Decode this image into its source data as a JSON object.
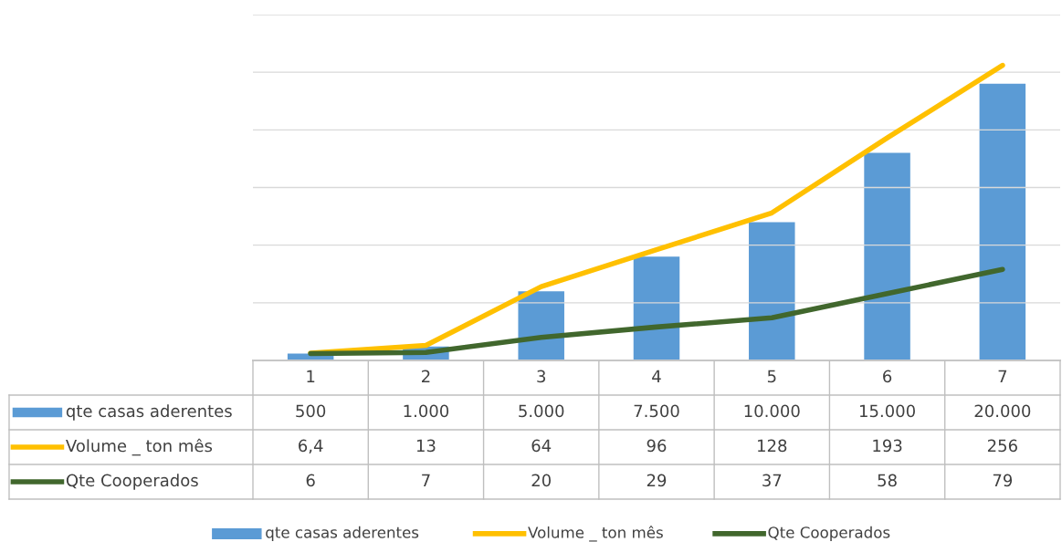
{
  "chart_data": {
    "type": "bar",
    "categories": [
      "1",
      "2",
      "3",
      "4",
      "5",
      "6",
      "7"
    ],
    "series": [
      {
        "name": "qte casas aderentes",
        "color": "#5b9bd5",
        "values": [
          500,
          1000,
          5000,
          7500,
          10000,
          15000,
          20000
        ],
        "value_labels": [
          "500",
          "1.000",
          "5.000",
          "7.500",
          "10.000",
          "15.000",
          "20.000"
        ]
      },
      {
        "name": "Volume _ ton mês",
        "type": "line",
        "axis": "y2",
        "color": "#ffc000",
        "values": [
          6.4,
          13,
          64,
          96,
          128,
          193,
          256
        ],
        "value_labels": [
          "6,4",
          "13",
          "64",
          "96",
          "128",
          "193",
          "256"
        ]
      },
      {
        "name": "Qte Cooperados",
        "type": "line",
        "axis": "y2",
        "color": "#41672d",
        "values": [
          6,
          7,
          20,
          29,
          37,
          58,
          79
        ],
        "value_labels": [
          "6",
          "7",
          "20",
          "29",
          "37",
          "58",
          "79"
        ]
      }
    ],
    "ylim": [
      0,
      25000
    ],
    "y2lim": [
      0,
      300
    ],
    "y2ticks": [
      {
        "value": 0,
        "label": null
      },
      {
        "value": 50,
        "label": null
      },
      {
        "value": 100,
        "label": null
      },
      {
        "value": 150,
        "label": null
      },
      {
        "value": 200,
        "label": null
      },
      {
        "value": 250,
        "label": null
      },
      {
        "value": 300,
        "label": null
      }
    ],
    "tick_labels": "x",
    "grid": true,
    "legend": "bottom",
    "marker": "none",
    "line_style": "solid"
  }
}
